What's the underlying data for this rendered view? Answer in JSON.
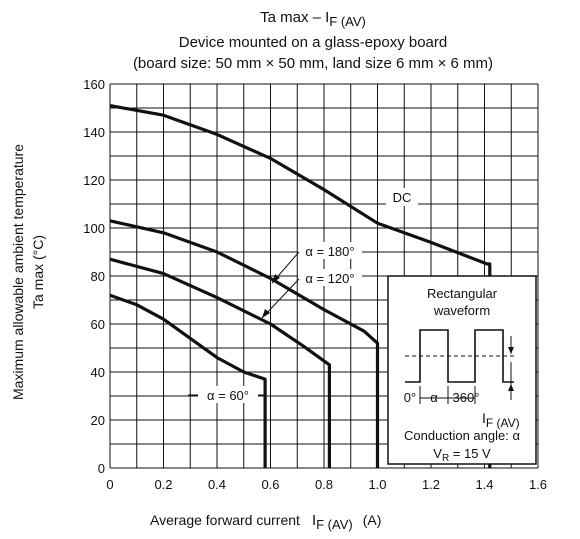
{
  "chart_data": {
    "type": "line",
    "title": "Ta max – I",
    "title_subscript": "F (AV)",
    "subtitle_lines": [
      "Device mounted on a glass-epoxy board",
      "(board size: 50 mm × 50 mm, land size 6 mm × 6 mm)"
    ],
    "xlabel": "Average forward current",
    "xlabel_symbol": "I",
    "xlabel_subscript": "F (AV)",
    "xlabel_unit": "(A)",
    "ylabel_lines": [
      "Maximum allowable ambient temperature",
      "Ta max    (°C)"
    ],
    "xlim": [
      0,
      1.6
    ],
    "ylim": [
      0,
      160
    ],
    "x_ticks": [
      "0",
      "0.2",
      "0.4",
      "0.6",
      "0.8",
      "1.0",
      "1.2",
      "1.4",
      "1.6"
    ],
    "y_ticks": [
      "0",
      "20",
      "40",
      "60",
      "80",
      "100",
      "120",
      "140",
      "160"
    ],
    "grid": true,
    "series": [
      {
        "name": "DC",
        "x": [
          0,
          0.2,
          0.4,
          0.6,
          0.8,
          1.0,
          1.2,
          1.41,
          1.42,
          1.42
        ],
        "y": [
          151,
          147,
          139,
          129,
          116,
          102,
          94,
          85,
          85,
          0
        ]
      },
      {
        "name": "α = 180°",
        "x": [
          0,
          0.2,
          0.4,
          0.6,
          0.8,
          0.95,
          1.0,
          1.0
        ],
        "y": [
          103,
          98,
          90,
          79,
          66,
          57,
          52,
          0
        ]
      },
      {
        "name": "α = 120°",
        "x": [
          0,
          0.2,
          0.4,
          0.6,
          0.72,
          0.82,
          0.82
        ],
        "y": [
          87,
          81,
          71,
          60,
          51,
          43,
          0
        ]
      },
      {
        "name": "α = 60°",
        "x": [
          0,
          0.1,
          0.2,
          0.3,
          0.4,
          0.5,
          0.58,
          0.58
        ],
        "y": [
          72,
          68,
          62,
          54,
          46,
          40,
          37,
          0
        ]
      }
    ],
    "annotations": {
      "dc": "DC",
      "a180": "α = 180°",
      "a120": "α = 120°",
      "a60": "α = 60°"
    },
    "inset": {
      "title_lines": [
        "Rectangular",
        "waveform"
      ],
      "label_0": "0°",
      "label_alpha": "α",
      "label_360": "360°",
      "label_if": "I",
      "label_if_sub": "F (AV)",
      "conduction": "Conduction angle: α",
      "vr": "V",
      "vr_sub": "R",
      "vr_value": " = 15 V"
    }
  }
}
